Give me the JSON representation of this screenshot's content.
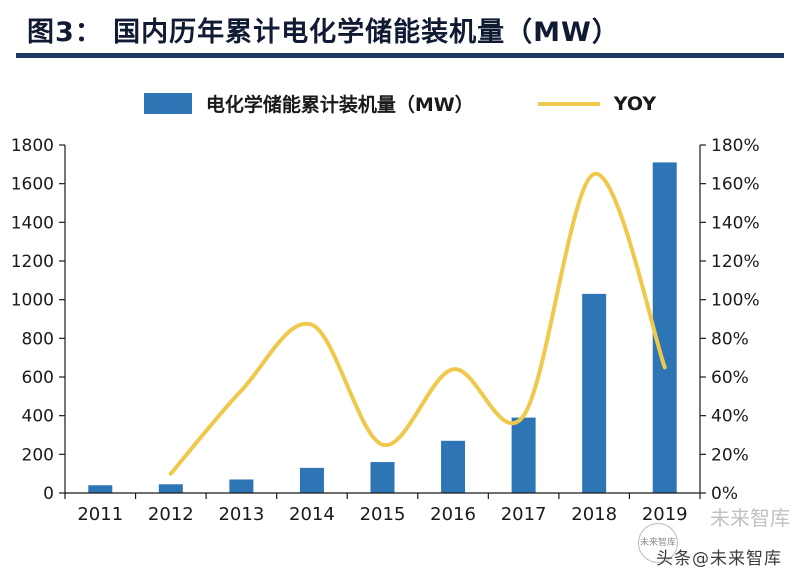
{
  "page": {
    "title": "图3：  国内历年累计电化学储能装机量（MW）",
    "watermark_bottom": "头条@未来智库",
    "watermark_side": "未来智库",
    "logo_text": "未来智库"
  },
  "legend": {
    "bars": "电化学储能累计装机量（MW）",
    "line": "YOY"
  },
  "colors": {
    "bar": "#2E75B6",
    "line": "#F0C84B",
    "accent": "#1F3864",
    "axis": "#1a1a1a"
  },
  "chart_data": {
    "type": "combo",
    "title": "国内历年累计电化学储能装机量（MW）",
    "categories": [
      "2011",
      "2012",
      "2013",
      "2014",
      "2015",
      "2016",
      "2017",
      "2018",
      "2019"
    ],
    "series": [
      {
        "name": "电化学储能累计装机量（MW）",
        "type": "bar",
        "axis": "left",
        "values": [
          40,
          45,
          70,
          130,
          160,
          270,
          390,
          1030,
          1710
        ]
      },
      {
        "name": "YOY",
        "type": "line",
        "axis": "right",
        "values": [
          null,
          10,
          53,
          87,
          25,
          64,
          40,
          165,
          65
        ]
      }
    ],
    "left_axis": {
      "min": 0,
      "max": 1800,
      "step": 200,
      "ticks": [
        "0",
        "200",
        "400",
        "600",
        "800",
        "1000",
        "1200",
        "1400",
        "1600",
        "1800"
      ]
    },
    "right_axis": {
      "min": 0,
      "max": 180,
      "step": 20,
      "ticks": [
        "0%",
        "20%",
        "40%",
        "60%",
        "80%",
        "100%",
        "120%",
        "140%",
        "160%",
        "180%"
      ]
    },
    "grid": false,
    "legend_position": "top"
  }
}
